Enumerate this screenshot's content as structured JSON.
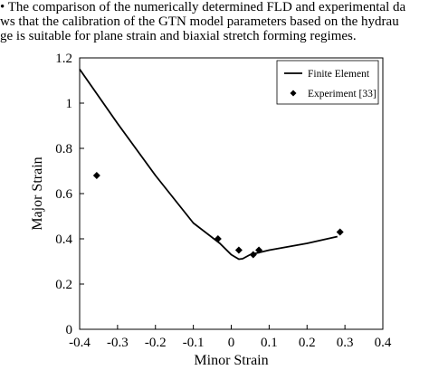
{
  "caption": {
    "line1": "• The comparison of the numerically determined FLD and experimental da",
    "line2": "ws that the calibration of the GTN model parameters based on the hydrau",
    "line3": "ge is suitable for plane strain and biaxial stretch forming regimes."
  },
  "chart_data": {
    "type": "line",
    "xlabel": "Minor Strain",
    "ylabel": "Major Strain",
    "xlim": [
      -0.4,
      0.4
    ],
    "ylim": [
      0,
      1.2
    ],
    "xticks": [
      -0.4,
      -0.3,
      -0.2,
      -0.1,
      0,
      0.1,
      0.2,
      0.3,
      0.4
    ],
    "yticks": [
      0,
      0.2,
      0.4,
      0.6,
      0.8,
      1,
      1.2
    ],
    "xtick_labels": [
      "-0.4",
      "-0.3",
      "-0.2",
      "-0.1",
      "0",
      "0.1",
      "0.2",
      "0.3",
      "0.4"
    ],
    "ytick_labels": [
      "0",
      "0.2",
      "0.4",
      "0.6",
      "0.8",
      "1",
      "1.2"
    ],
    "grid": false,
    "legend_position": "top-right",
    "series": [
      {
        "name": "Finite Element",
        "kind": "line",
        "color": "#000000",
        "x": [
          -0.4,
          -0.3,
          -0.2,
          -0.1,
          -0.03,
          0.0,
          0.02,
          0.03,
          0.05,
          0.1,
          0.2,
          0.28
        ],
        "y": [
          1.15,
          0.91,
          0.68,
          0.47,
          0.38,
          0.33,
          0.31,
          0.312,
          0.33,
          0.35,
          0.38,
          0.41
        ]
      },
      {
        "name": "Experiment [33]",
        "kind": "scatter",
        "marker": "diamond",
        "color": "#000000",
        "x": [
          -0.355,
          -0.035,
          0.02,
          0.058,
          0.073,
          0.287
        ],
        "y": [
          0.68,
          0.4,
          0.35,
          0.33,
          0.35,
          0.43
        ]
      }
    ]
  }
}
